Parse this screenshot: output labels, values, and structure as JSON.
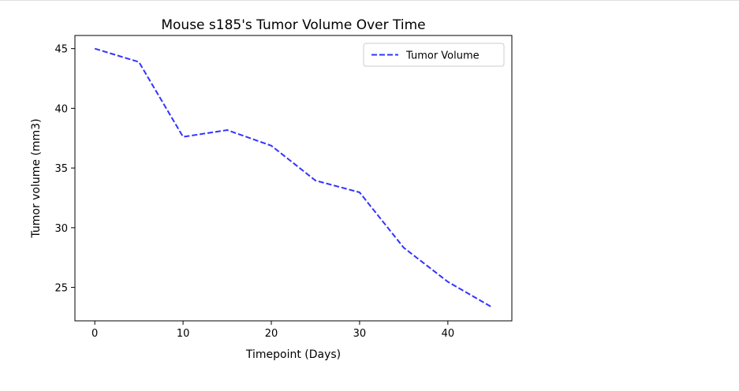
{
  "chart_data": {
    "type": "line",
    "title": "Mouse s185's Tumor Volume Over Time",
    "xlabel": "Timepoint (Days)",
    "ylabel": "Tumor volume (mm3)",
    "xlim": [
      -2.25,
      47.25
    ],
    "ylim": [
      22.2,
      46.1
    ],
    "xticks": [
      0,
      10,
      20,
      30,
      40
    ],
    "yticks": [
      25,
      30,
      35,
      40,
      45
    ],
    "grid": false,
    "legend_position": "top-right",
    "series": [
      {
        "name": "Tumor Volume",
        "color": "#3333ff",
        "line_style": "dashed",
        "x": [
          0,
          5,
          10,
          15,
          20,
          25,
          30,
          35,
          40,
          45
        ],
        "y": [
          45.0,
          43.88,
          37.61,
          38.18,
          36.87,
          33.95,
          32.96,
          28.33,
          25.47,
          23.34
        ]
      }
    ]
  }
}
